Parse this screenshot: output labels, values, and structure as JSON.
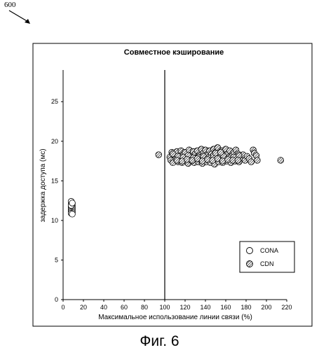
{
  "figure": {
    "ref_number": "600",
    "caption": "Фиг. 6"
  },
  "chart_data": {
    "type": "scatter",
    "title": "Совместное кэширование",
    "xlabel": "Максимальное использование линии связи (%)",
    "ylabel": "задержка доступа (мс)",
    "xlim": [
      0,
      220
    ],
    "ylim": [
      0,
      29
    ],
    "xticks": [
      0,
      20,
      40,
      60,
      80,
      100,
      120,
      140,
      160,
      180,
      200,
      220
    ],
    "yticks": [
      0,
      5,
      10,
      15,
      20,
      25
    ],
    "grid": false,
    "legend_position": "bottom-right",
    "vertical_reference_line_x": 100,
    "series": [
      {
        "name": "CONA",
        "marker": "open-circle",
        "color": "#ffffff",
        "x": [
          8,
          9,
          8,
          9,
          8,
          9,
          8,
          9,
          8,
          9,
          8,
          9,
          8,
          9,
          8,
          9
        ],
        "y": [
          12.4,
          12.1,
          12.0,
          11.8,
          11.7,
          11.6,
          11.5,
          11.4,
          11.3,
          11.2,
          11.1,
          11.0,
          10.9,
          10.8,
          11.9,
          12.2
        ]
      },
      {
        "name": "CDN",
        "marker": "hatched-circle",
        "color": "#888888",
        "x": [
          94,
          105,
          106,
          107,
          108,
          110,
          111,
          112,
          113,
          114,
          115,
          116,
          117,
          118,
          119,
          120,
          121,
          122,
          123,
          124,
          125,
          126,
          127,
          128,
          129,
          130,
          131,
          132,
          133,
          134,
          135,
          136,
          137,
          138,
          139,
          140,
          141,
          142,
          143,
          144,
          145,
          146,
          147,
          148,
          149,
          150,
          151,
          152,
          153,
          154,
          155,
          156,
          157,
          158,
          159,
          160,
          161,
          162,
          163,
          164,
          165,
          166,
          167,
          168,
          169,
          170,
          171,
          172,
          173,
          174,
          175,
          177,
          179,
          181,
          183,
          185,
          187,
          188,
          190,
          191,
          214,
          108,
          113,
          118,
          123,
          128,
          133,
          138,
          143,
          148,
          153,
          158,
          163,
          168,
          173,
          112,
          117,
          122,
          127,
          132,
          137,
          142,
          147,
          152,
          157,
          162,
          167,
          172,
          150,
          155
        ],
        "y": [
          18.3,
          18.0,
          17.6,
          18.6,
          17.3,
          18.2,
          17.8,
          18.7,
          17.4,
          18.1,
          17.9,
          18.8,
          17.3,
          18.3,
          17.7,
          18.6,
          17.5,
          18.1,
          17.2,
          18.9,
          17.8,
          18.3,
          17.5,
          18.7,
          17.3,
          18.4,
          17.9,
          18.8,
          17.4,
          18.2,
          17.7,
          19.0,
          17.2,
          18.5,
          17.8,
          18.9,
          17.4,
          18.3,
          17.6,
          18.8,
          17.3,
          18.4,
          17.9,
          19.0,
          17.1,
          18.6,
          17.7,
          19.2,
          17.4,
          18.5,
          17.9,
          18.8,
          17.3,
          18.2,
          17.6,
          19.0,
          17.5,
          18.4,
          17.8,
          18.8,
          17.3,
          18.2,
          17.7,
          18.6,
          17.5,
          18.9,
          17.8,
          18.4,
          17.4,
          18.1,
          17.9,
          18.3,
          17.6,
          18.1,
          17.8,
          17.4,
          18.9,
          18.5,
          18.2,
          17.6,
          17.6,
          18.4,
          18.1,
          18.0,
          18.2,
          17.9,
          18.0,
          18.1,
          17.9,
          18.2,
          18.0,
          18.1,
          17.9,
          18.0,
          18.2,
          17.6,
          17.5,
          17.7,
          17.6,
          17.8,
          17.5,
          17.7,
          17.6,
          17.8,
          17.5,
          17.7,
          17.6,
          17.6,
          18.5,
          18.6
        ]
      }
    ]
  }
}
